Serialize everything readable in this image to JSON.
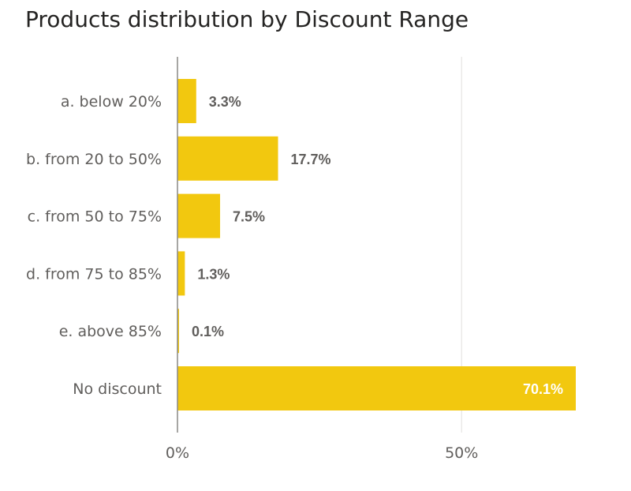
{
  "chart_data": {
    "type": "bar",
    "orientation": "horizontal",
    "title": "Products distribution by Discount Range",
    "categories": [
      "a. below 20%",
      "b. from 20 to 50%",
      "c. from 50 to 75%",
      "d. from 75 to 85%",
      "e. above 85%",
      "No discount"
    ],
    "values": [
      3.3,
      17.7,
      7.5,
      1.3,
      0.1,
      70.1
    ],
    "value_labels": [
      "3.3%",
      "17.7%",
      "7.5%",
      "1.3%",
      "0.1%",
      "70.1%"
    ],
    "xlim": [
      0,
      70.1
    ],
    "xticks": [
      0,
      50
    ],
    "xtick_labels": [
      "0%",
      "50%"
    ],
    "xlabel": "",
    "ylabel": "",
    "grid": true,
    "legend": "none",
    "colors": {
      "bar": "#F2C80F",
      "label_outside": "#605E5C",
      "label_inside": "#FFFFFF",
      "axis": "#8A8886",
      "grid": "#E1DFDD"
    }
  }
}
